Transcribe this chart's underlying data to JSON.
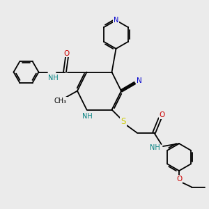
{
  "background_color": "#ebebeb",
  "figsize": [
    3.0,
    3.0
  ],
  "dpi": 100,
  "colors": {
    "C": "#000000",
    "N": "#0000cc",
    "O": "#cc0000",
    "S": "#cccc00",
    "NH": "#008080"
  },
  "font_size": 7.0,
  "bond_lw": 1.3
}
